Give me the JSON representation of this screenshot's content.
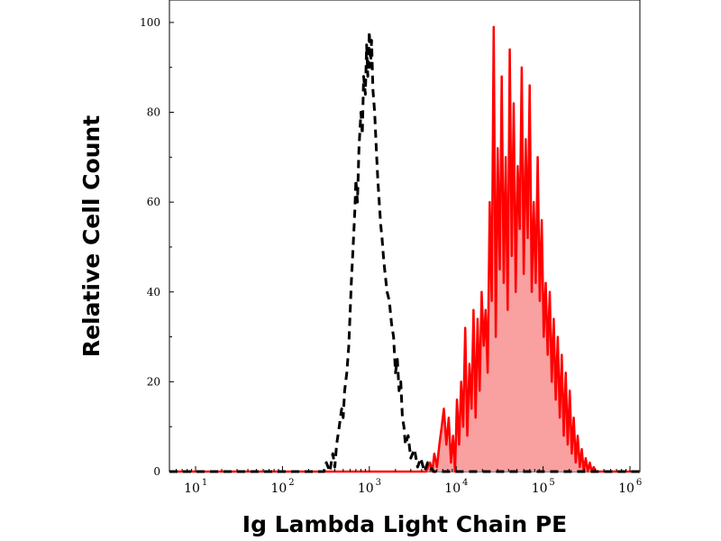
{
  "chart_data": {
    "type": "area",
    "xlabel": "Ig Lambda Light Chain PE",
    "ylabel": "Relative Cell Count",
    "x_scale": "log",
    "xlim": [
      5,
      1300000
    ],
    "ylim": [
      0,
      105
    ],
    "grid": false,
    "x_ticks": [
      {
        "base": "10",
        "exp": "1",
        "value": 10
      },
      {
        "base": "10",
        "exp": "2",
        "value": 100
      },
      {
        "base": "10",
        "exp": "3",
        "value": 1000
      },
      {
        "base": "10",
        "exp": "4",
        "value": 10000
      },
      {
        "base": "10",
        "exp": "5",
        "value": 100000
      },
      {
        "base": "10",
        "exp": "6",
        "value": 1000000
      }
    ],
    "y_ticks": [
      {
        "label": "0",
        "value": 0
      },
      {
        "label": "20",
        "value": 20
      },
      {
        "label": "40",
        "value": 40
      },
      {
        "label": "60",
        "value": 60
      },
      {
        "label": "80",
        "value": 80
      },
      {
        "label": "100",
        "value": 100
      }
    ],
    "series": [
      {
        "style": "dashed",
        "color": "#000000",
        "fill": "none",
        "x": [
          5,
          200,
          300,
          320,
          350,
          380,
          400,
          420,
          450,
          480,
          500,
          520,
          550,
          580,
          600,
          620,
          650,
          680,
          700,
          730,
          760,
          800,
          830,
          860,
          900,
          930,
          960,
          1000,
          1030,
          1060,
          1100,
          1150,
          1200,
          1250,
          1300,
          1350,
          1400,
          1450,
          1500,
          1600,
          1700,
          1800,
          1900,
          2000,
          2100,
          2200,
          2300,
          2400,
          2500,
          2600,
          2800,
          3000,
          3300,
          3600,
          3900,
          4300,
          4700,
          5500,
          7000,
          1300000
        ],
        "y": [
          0,
          0,
          0,
          2,
          0,
          4,
          1,
          6,
          10,
          14,
          12,
          18,
          22,
          28,
          35,
          42,
          50,
          58,
          65,
          60,
          72,
          80,
          75,
          88,
          84,
          95,
          88,
          98,
          90,
          96,
          85,
          80,
          72,
          65,
          60,
          55,
          52,
          48,
          45,
          40,
          38,
          33,
          30,
          22,
          25,
          18,
          20,
          12,
          10,
          6,
          8,
          3,
          5,
          1,
          3,
          0,
          2,
          0,
          0,
          0
        ]
      },
      {
        "style": "solid",
        "color": "#ff0000",
        "fill": "#f9a0a0",
        "x": [
          5,
          4500,
          5000,
          5300,
          5600,
          6000,
          6400,
          6800,
          7200,
          7700,
          8200,
          8700,
          9200,
          9700,
          10200,
          10800,
          11400,
          12000,
          12700,
          13400,
          14200,
          15000,
          15800,
          16700,
          17600,
          18600,
          19600,
          20700,
          21800,
          23000,
          24300,
          25600,
          27000,
          28500,
          30000,
          31700,
          33400,
          35200,
          37100,
          39100,
          41300,
          43500,
          45900,
          48400,
          51000,
          53800,
          56700,
          59800,
          63100,
          66500,
          70100,
          74000,
          78000,
          82200,
          86700,
          91400,
          96400,
          101700,
          107200,
          113000,
          119200,
          125700,
          132600,
          139800,
          147400,
          155400,
          163900,
          172800,
          182200,
          192100,
          202600,
          213600,
          225200,
          237500,
          250400,
          264100,
          278400,
          293600,
          309600,
          326500,
          344200,
          363000,
          382700,
          403600,
          425600,
          448700,
          473200,
          498900,
          526100,
          554700,
          585000,
          1300000
        ],
        "y": [
          0,
          0,
          2,
          0,
          4,
          1,
          6,
          10,
          14,
          6,
          12,
          2,
          8,
          0,
          16,
          6,
          20,
          10,
          32,
          8,
          24,
          14,
          36,
          12,
          34,
          18,
          40,
          28,
          36,
          22,
          60,
          38,
          99,
          30,
          72,
          45,
          88,
          42,
          70,
          36,
          94,
          48,
          82,
          40,
          68,
          54,
          90,
          44,
          74,
          52,
          86,
          40,
          60,
          42,
          70,
          38,
          56,
          30,
          42,
          26,
          40,
          20,
          34,
          16,
          30,
          12,
          26,
          8,
          22,
          6,
          18,
          4,
          12,
          2,
          8,
          1,
          5,
          0,
          3,
          0,
          2,
          0,
          1,
          0,
          0,
          0,
          0,
          0,
          0,
          0,
          0,
          0
        ]
      }
    ]
  }
}
